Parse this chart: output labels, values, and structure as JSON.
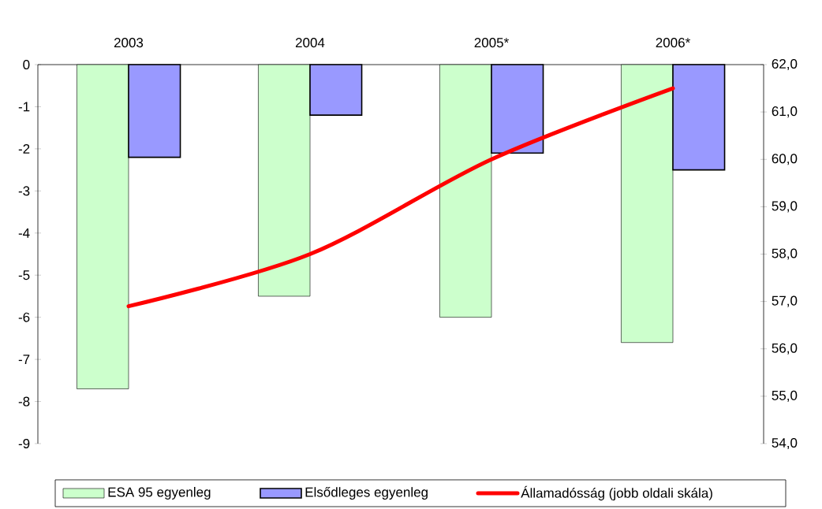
{
  "chart_data": {
    "type": "bar",
    "categories": [
      "2003",
      "2004",
      "2005*",
      "2006*"
    ],
    "series": [
      {
        "name": "ESA 95 egyenleg",
        "color": "#ccffcc",
        "values": [
          -7.7,
          -5.5,
          -6.0,
          -6.6
        ]
      },
      {
        "name": "Elsődleges egyenleg",
        "color": "#9999ff",
        "values": [
          -2.2,
          -1.2,
          -2.1,
          -2.5
        ]
      },
      {
        "name": "Államadósság (jobb oldali skála)",
        "type": "line",
        "axis": "y2",
        "color": "#ff0000",
        "values": [
          56.9,
          58.0,
          60.0,
          61.5
        ]
      }
    ],
    "ylim": [
      -9,
      0
    ],
    "yticks": [
      -9,
      -8,
      -7,
      -6,
      -5,
      -4,
      -3,
      -2,
      -1,
      0
    ],
    "y2lim": [
      54,
      62
    ],
    "y2ticks": [
      {
        "value": 54,
        "label": "54,0"
      },
      {
        "value": 55,
        "label": "55,0"
      },
      {
        "value": 56,
        "label": "56,0"
      },
      {
        "value": 57,
        "label": "57,0"
      },
      {
        "value": 58,
        "label": "58,0"
      },
      {
        "value": 59,
        "label": "59,0"
      },
      {
        "value": 60,
        "label": "60,0"
      },
      {
        "value": 61,
        "label": "61,0"
      },
      {
        "value": 62,
        "label": "62,0"
      }
    ],
    "legend": "bottom",
    "marker": "none",
    "grid": false
  }
}
